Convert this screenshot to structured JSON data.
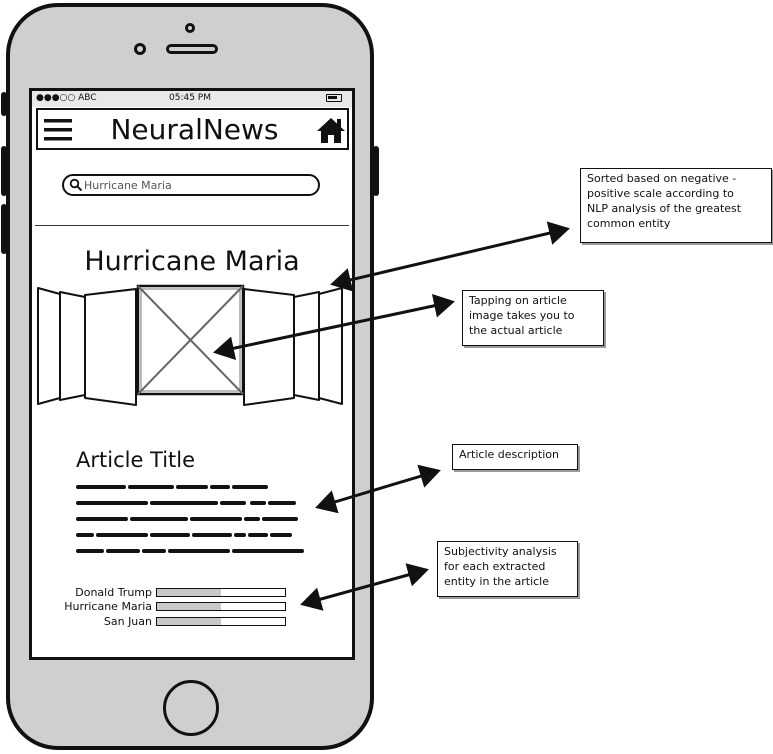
{
  "status_bar": {
    "carrier": "●●●○○ ABC",
    "time": "05:45 PM"
  },
  "app": {
    "title": "NeuralNews"
  },
  "search": {
    "value": "Hurricane Maria",
    "placeholder": ""
  },
  "topic": {
    "title": "Hurricane Maria"
  },
  "article": {
    "title": "Article Title"
  },
  "entities": [
    {
      "name": "Donald Trump",
      "score": 0.5
    },
    {
      "name": "Hurricane Maria",
      "score": 0.5
    },
    {
      "name": "San Juan",
      "score": 0.5
    }
  ],
  "notes": {
    "sorting": "Sorted based on negative -\npositive scale according to\nNLP analysis of the greatest\ncommon entity",
    "tapping": "Tapping on article\nimage takes you to\nthe actual article",
    "description": "Article description",
    "subjectivity": "Subjectivity analysis\nfor each extracted\nentity in the article"
  },
  "icons": [
    "menu-icon",
    "home-icon",
    "search-icon",
    "image-placeholder-icon"
  ]
}
